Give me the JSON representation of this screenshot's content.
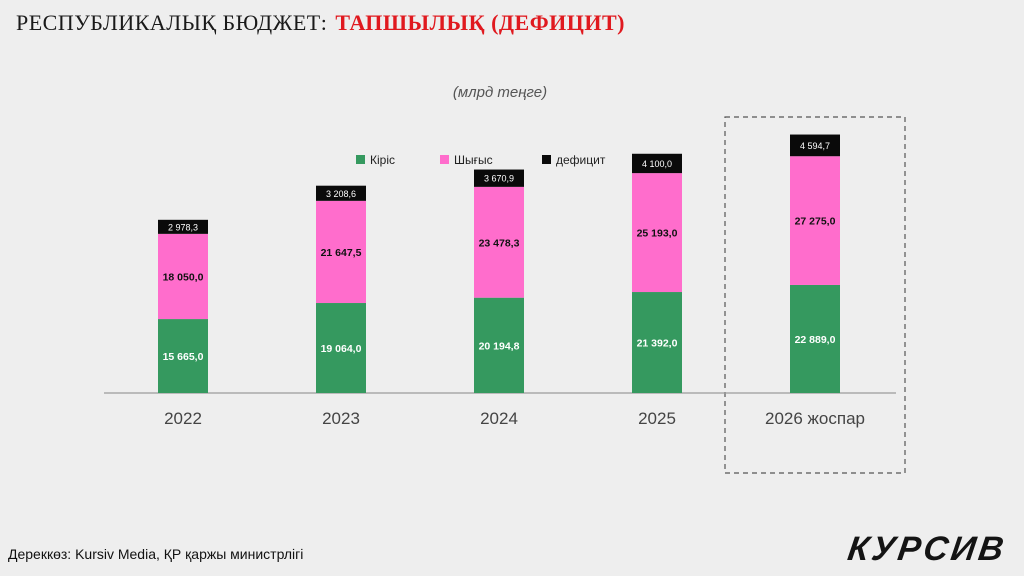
{
  "title_part1": "РЕСПУБЛИКАЛЫҚ БЮДЖЕТ:",
  "title_part2": "ТАПШЫЛЫҚ (ДЕФИЦИТ)",
  "source": "Дереккөз: Kursiv Media, ҚР қаржы министрлігі",
  "logo": "КУРСИВ",
  "chart_data": {
    "type": "bar",
    "stacked": true,
    "subtitle": "(млрд теңге)",
    "categories": [
      "2022",
      "2023",
      "2024",
      "2025",
      "2026 жоспар"
    ],
    "highlighted_category": "2026 жоспар",
    "legend_position": "top-center",
    "grid": false,
    "ylim": [
      0,
      56000
    ],
    "series": [
      {
        "name": "Кіріс",
        "color": "#35995f",
        "values": [
          15665.0,
          19064.0,
          20194.8,
          21392.0,
          22889.0
        ],
        "labels": [
          "15 665,0",
          "19 064,0",
          "20 194,8",
          "21 392,0",
          "22 889,0"
        ]
      },
      {
        "name": "Шығыс",
        "color": "#ff6dcc",
        "values": [
          18050.0,
          21647.5,
          23478.3,
          25193.0,
          27275.0
        ],
        "labels": [
          "18 050,0",
          "21 647,5",
          "23 478,3",
          "25 193,0",
          "27 275,0"
        ]
      },
      {
        "name": "дефицит",
        "color": "#0a0a0a",
        "values": [
          2978.3,
          3208.6,
          3670.9,
          4100.0,
          4594.7
        ],
        "labels": [
          "2 978,3",
          "3 208,6",
          "3 670,9",
          "4 100,0",
          "4 594,7"
        ]
      }
    ]
  }
}
